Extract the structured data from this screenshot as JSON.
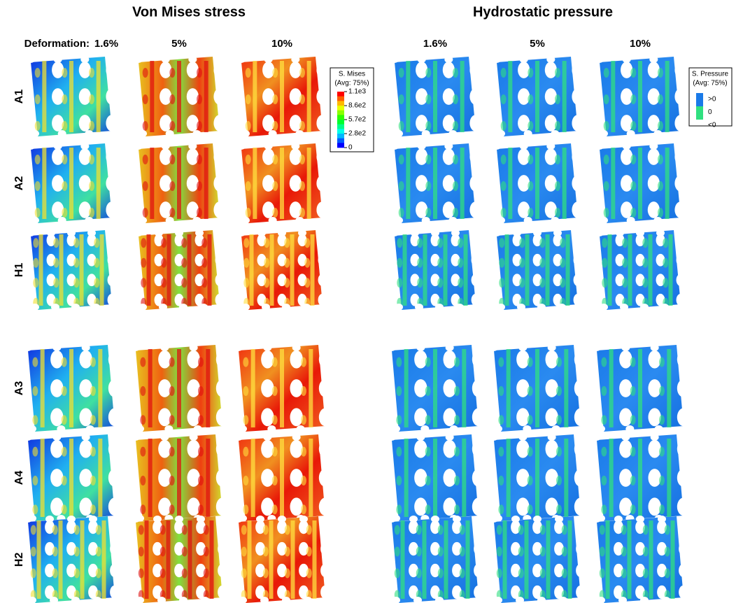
{
  "titles": [
    "Von Mises stress",
    "Hydrostatic pressure"
  ],
  "columns": {
    "label": "Deformation:",
    "mises": [
      "1.6%",
      "5%",
      "10%"
    ],
    "pressure": [
      "1.6%",
      "5%",
      "10%"
    ]
  },
  "rows": [
    "A1",
    "A2",
    "H1",
    "A3",
    "A4",
    "H2"
  ],
  "legends": {
    "mises": {
      "title": "S. Mises",
      "subtitle": "(Avg: 75%)",
      "ticks": [
        "1.1e3",
        "8.6e2",
        "5.7e2",
        "2.8e2",
        "0"
      ]
    },
    "pressure": {
      "title": "S. Pressure",
      "subtitle": "(Avg: 75%)",
      "ticks": [
        ">0",
        "0",
        "<0"
      ]
    }
  }
}
